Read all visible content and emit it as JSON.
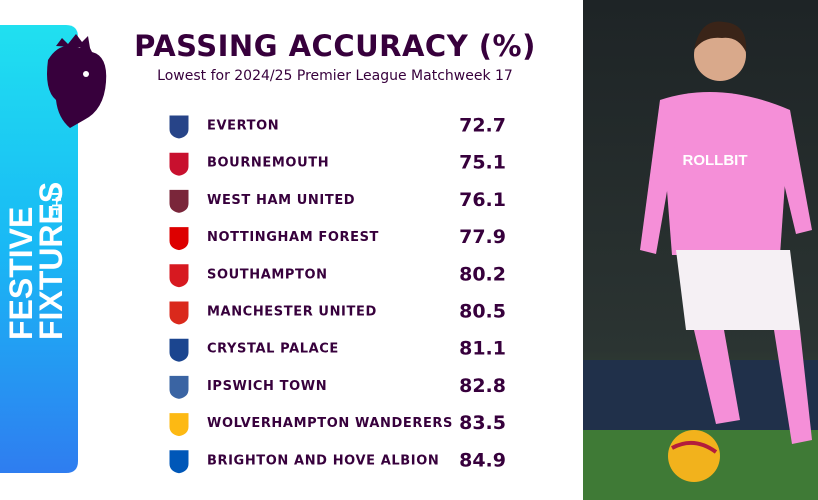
{
  "header": {
    "title": "PASSING ACCURACY (%)",
    "subtitle": "Lowest for 2024/25 Premier League Matchweek 17"
  },
  "side_banner": {
    "small": "THE",
    "line1": "FESTIVE",
    "line2": "FIXTURES"
  },
  "table": {
    "rows": [
      [
        "EVERTON",
        "72.7"
      ],
      [
        "BOURNEMOUTH",
        "75.1"
      ],
      [
        "WEST HAM UNITED",
        "76.1"
      ],
      [
        "NOTTINGHAM FOREST",
        "77.9"
      ],
      [
        "SOUTHAMPTON",
        "80.2"
      ],
      [
        "MANCHESTER UNITED",
        "80.5"
      ],
      [
        "CRYSTAL PALACE",
        "81.1"
      ],
      [
        "IPSWICH TOWN",
        "82.8"
      ],
      [
        "WOLVERHAMPTON WANDERERS",
        "83.5"
      ],
      [
        "BRIGHTON AND HOVE ALBION",
        "84.9"
      ]
    ]
  },
  "photo": {
    "shirt_text": "ROLLBIT"
  }
}
